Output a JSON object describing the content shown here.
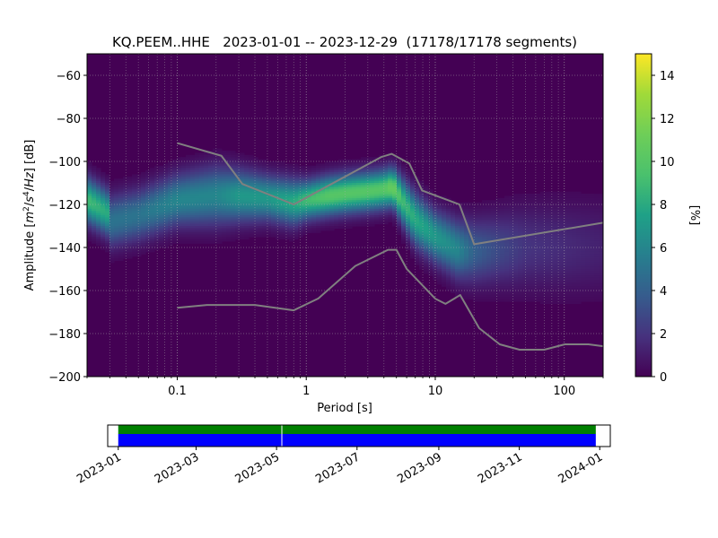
{
  "chart_data": [
    {
      "type": "heatmap",
      "title": "KQ.PEEM..HHE   2023-01-01 -- 2023-12-29  (17178/17178 segments)",
      "xlabel": "Period [s]",
      "ylabel": "Amplitude [m²/s⁴/Hz] [dB]",
      "ylabel_parts": [
        "Amplitude [",
        "m",
        "2",
        "/",
        "s",
        "4",
        "/",
        "Hz",
        "] [dB]"
      ],
      "x_scale": "log",
      "xlim": [
        0.02,
        200
      ],
      "ylim": [
        -200,
        -50
      ],
      "x_ticks": [
        0.1,
        1,
        10,
        100
      ],
      "x_tick_labels": [
        "0.1",
        "1",
        "10",
        "100"
      ],
      "y_ticks": [
        -60,
        -80,
        -100,
        -120,
        -140,
        -160,
        -180,
        -200
      ],
      "y_tick_labels": [
        "−60",
        "−80",
        "−100",
        "−120",
        "−140",
        "−160",
        "−180",
        "−200"
      ],
      "grid": true,
      "colormap": "viridis",
      "colorbar": {
        "label": "[%]",
        "range": [
          0,
          15
        ],
        "ticks": [
          0,
          2,
          4,
          6,
          8,
          10,
          12,
          14
        ],
        "tick_labels": [
          "0",
          "2",
          "4",
          "6",
          "8",
          "10",
          "12",
          "14"
        ]
      },
      "density_ridge": {
        "periods": [
          0.02,
          0.029,
          0.03,
          0.05,
          0.1,
          0.2,
          0.3,
          0.5,
          0.8,
          1.0,
          1.5,
          2.0,
          3.0,
          4.0,
          4.7,
          5.5,
          7.0,
          10.0,
          15.0,
          20.0,
          30.0,
          50.0,
          100.0,
          200.0
        ],
        "center_db": [
          -118,
          -124,
          -128,
          -125,
          -118,
          -116,
          -116,
          -117,
          -119,
          -118,
          -116,
          -115,
          -114,
          -113,
          -112,
          -118,
          -127,
          -135,
          -141,
          -142,
          -141,
          -140,
          -140,
          -140
        ],
        "width_db": [
          7,
          7,
          8,
          8,
          8,
          9,
          8,
          7,
          7,
          6,
          6,
          6,
          6,
          6,
          6,
          7,
          8,
          8,
          9,
          10,
          11,
          13,
          14,
          15
        ],
        "peak_percent": [
          9,
          8,
          5,
          5,
          6,
          6,
          7,
          7,
          8,
          9,
          10,
          10,
          10,
          10,
          11,
          9,
          8,
          7,
          6,
          4,
          3,
          2,
          1.6,
          1.2
        ]
      },
      "noise_models": [
        {
          "model": "upper",
          "x": [
            0.1,
            0.22,
            0.32,
            0.8,
            3.8,
            4.6,
            6.3,
            7.9,
            15.4,
            20,
            200
          ],
          "y": [
            -91.5,
            -97.4,
            -110.5,
            -120.0,
            -98.0,
            -96.5,
            -101.0,
            -113.5,
            -120.0,
            -138.5,
            -128.5
          ]
        },
        {
          "model": "lower",
          "x": [
            0.1,
            0.17,
            0.4,
            0.8,
            1.24,
            2.4,
            4.3,
            5.0,
            6.0,
            10.0,
            12.0,
            15.6,
            21.9,
            31.6,
            45.0,
            70.0,
            101.0,
            154.0,
            200.0
          ],
          "y": [
            -168.0,
            -166.7,
            -166.7,
            -169.2,
            -163.7,
            -148.6,
            -141.1,
            -141.1,
            -149.9,
            -163.8,
            -166.2,
            -162.1,
            -177.5,
            -185.0,
            -187.5,
            -187.5,
            -185.0,
            -185.0,
            -185.9
          ]
        }
      ]
    },
    {
      "type": "timeline",
      "date_ticks": [
        "2023-01",
        "2023-03",
        "2023-05",
        "2023-07",
        "2023-09",
        "2023-11",
        "2024-01"
      ],
      "xlim": [
        "2022-12-24",
        "2024-01-09"
      ],
      "coverage_start": "2023-01-01",
      "coverage_end": "2023-12-29",
      "gaps": [
        "2023-05-05"
      ],
      "colors": {
        "data_bar": "#008000",
        "coverage_bar": "#0000ff"
      }
    }
  ]
}
